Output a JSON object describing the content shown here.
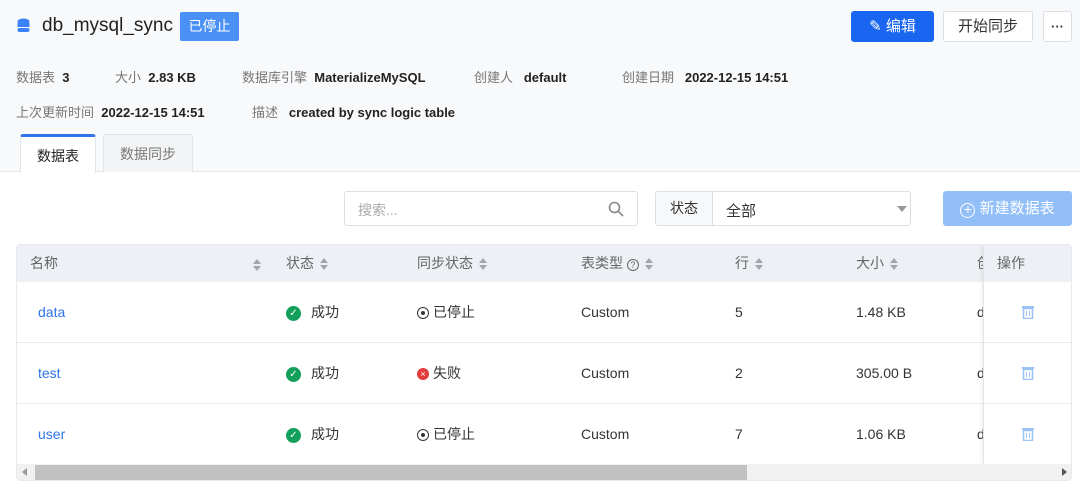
{
  "header": {
    "title": "db_mysql_sync",
    "status_badge": "已停止",
    "edit_label": "编辑",
    "start_sync_label": "开始同步",
    "more_label": "···"
  },
  "meta": [
    {
      "label": "数据表",
      "value": "3"
    },
    {
      "label": "大小",
      "value": "2.83 KB"
    },
    {
      "label": "数据库引擎",
      "value": "MaterializeMySQL"
    },
    {
      "label": "创建人",
      "value": "default"
    },
    {
      "label": "创建日期",
      "value": "2022-12-15 14:51"
    },
    {
      "label": "上次更新时间",
      "value": "2022-12-15 14:51"
    },
    {
      "label": "描述",
      "value": "created by sync logic table"
    }
  ],
  "tabs": [
    {
      "label": "数据表",
      "active": true
    },
    {
      "label": "数据同步",
      "active": false
    }
  ],
  "toolbar": {
    "search_placeholder": "搜索...",
    "status_filter_label": "状态",
    "status_filter_value": "全部",
    "new_table_label": "新建数据表"
  },
  "table": {
    "columns": [
      "名称",
      "状态",
      "同步状态",
      "表类型",
      "行",
      "大小",
      "创",
      "操作"
    ],
    "rows": [
      {
        "name": "data",
        "status": "成功",
        "sync_status": "已停止",
        "sync_icon": "stopped",
        "type": "Custom",
        "rows": "5",
        "size": "1.48 KB",
        "creator": "d"
      },
      {
        "name": "test",
        "status": "成功",
        "sync_status": "失败",
        "sync_icon": "failed",
        "type": "Custom",
        "rows": "2",
        "size": "305.00 B",
        "creator": "d"
      },
      {
        "name": "user",
        "status": "成功",
        "sync_status": "已停止",
        "sync_icon": "stopped",
        "type": "Custom",
        "rows": "7",
        "size": "1.06 KB",
        "creator": "d"
      }
    ]
  },
  "colors": {
    "primary": "#1a66f0",
    "success": "#13a05b",
    "error": "#e23b3b",
    "link": "#2f74e8"
  }
}
